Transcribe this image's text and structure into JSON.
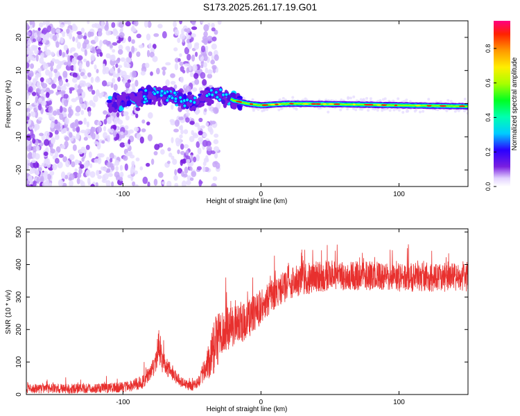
{
  "title": "S173.2025.261.17.19.G01",
  "chart_data": [
    {
      "type": "heatmap",
      "name": "spectrogram",
      "title": "S173.2025.261.17.19.G01",
      "xlabel": "Height of straight line (km)",
      "ylabel": "Frequency (Hz)",
      "xlim": [
        -170,
        150
      ],
      "ylim": [
        -25,
        25
      ],
      "xticks": [
        -100,
        0,
        100
      ],
      "xtick_labels": [
        "-100",
        "0",
        "100"
      ],
      "yticks": [
        -20,
        -10,
        0,
        10,
        20
      ],
      "ytick_labels": [
        "-20",
        "-10",
        "0",
        "10",
        "20"
      ],
      "colorbar": {
        "label": "Normalized spectral amplitude",
        "range": [
          0,
          0.96
        ],
        "ticks": [
          0.0,
          0.2,
          0.4,
          0.6,
          0.8
        ],
        "tick_labels": [
          "0.0",
          "0.2",
          "0.4",
          "0.6",
          "0.8"
        ],
        "colormap": "rainbow"
      },
      "features": {
        "noise_region_x": [
          -170,
          -40
        ],
        "signal_band": [
          {
            "x": -105,
            "f": 0.5
          },
          {
            "x": -90,
            "f": 1.5
          },
          {
            "x": -80,
            "f": 2.5
          },
          {
            "x": -70,
            "f": 3
          },
          {
            "x": -60,
            "f": 1.5
          },
          {
            "x": -50,
            "f": 0
          },
          {
            "x": -40,
            "f": 2.5
          },
          {
            "x": -30,
            "f": 3
          },
          {
            "x": -20,
            "f": 1
          },
          {
            "x": -10,
            "f": 0
          },
          {
            "x": 0,
            "f": -0.5
          },
          {
            "x": 20,
            "f": 0
          },
          {
            "x": 60,
            "f": -0.2
          },
          {
            "x": 100,
            "f": -0.5
          },
          {
            "x": 150,
            "f": -0.8
          }
        ]
      }
    },
    {
      "type": "line",
      "name": "snr",
      "xlabel": "Height of straight line (km)",
      "ylabel": "SNR (10 * v/v)",
      "xlim": [
        -170,
        150
      ],
      "ylim": [
        0,
        510
      ],
      "xticks": [
        -100,
        0,
        100
      ],
      "xtick_labels": [
        "-100",
        "0",
        "100"
      ],
      "yticks": [
        0,
        100,
        200,
        300,
        400,
        500
      ],
      "ytick_labels": [
        "0",
        "100",
        "200",
        "300",
        "400",
        "500"
      ],
      "line_color": "#e8302e",
      "series": [
        {
          "name": "SNR",
          "x": [
            -170,
            -150,
            -130,
            -110,
            -95,
            -85,
            -78,
            -74,
            -72,
            -70,
            -66,
            -62,
            -58,
            -54,
            -50,
            -45,
            -40,
            -36,
            -32,
            -28,
            -25,
            -20,
            -15,
            -10,
            -5,
            0,
            5,
            10,
            15,
            20,
            25,
            30,
            40,
            50,
            60,
            80,
            100,
            120,
            140,
            150
          ],
          "mean": [
            18,
            18,
            18,
            20,
            25,
            40,
            80,
            140,
            110,
            90,
            75,
            55,
            40,
            30,
            25,
            40,
            80,
            120,
            160,
            190,
            200,
            210,
            215,
            230,
            250,
            270,
            290,
            310,
            325,
            340,
            350,
            355,
            360,
            365,
            365,
            365,
            360,
            362,
            360,
            360
          ],
          "spread": [
            30,
            30,
            30,
            30,
            35,
            45,
            60,
            120,
            80,
            60,
            50,
            40,
            35,
            30,
            30,
            40,
            80,
            150,
            180,
            150,
            130,
            130,
            120,
            120,
            110,
            110,
            100,
            100,
            100,
            100,
            100,
            100,
            100,
            90,
            90,
            90,
            90,
            90,
            90,
            90
          ]
        }
      ]
    }
  ],
  "colors": {
    "snr_line": "#e8302e",
    "noise_purple": "#7a1fe0"
  }
}
